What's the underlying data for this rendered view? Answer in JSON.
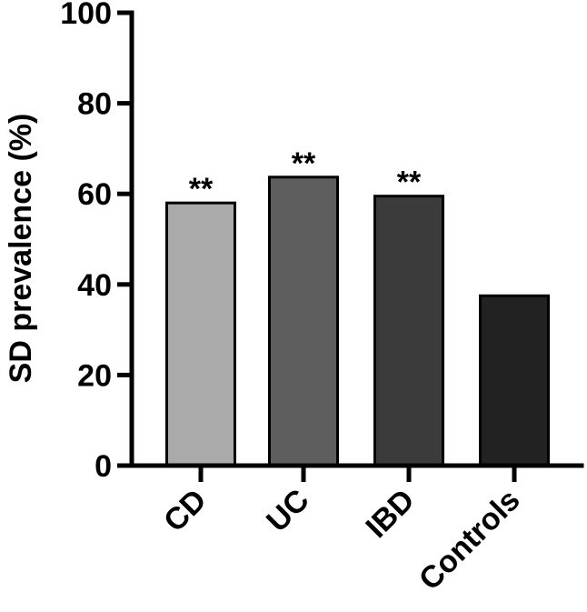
{
  "chart_data": {
    "type": "bar",
    "categories": [
      "CD",
      "UC",
      "IBD",
      "Controls"
    ],
    "values": [
      58,
      63.7,
      59.5,
      37.5
    ],
    "significance": [
      "**",
      "**",
      "**",
      ""
    ],
    "bar_colors": [
      "#aaaaaa",
      "#5e5e5e",
      "#3b3b3b",
      "#222222"
    ],
    "ylabel": "SD prevalence (%)",
    "xlabel": "",
    "title": "",
    "ylim": [
      0,
      100
    ],
    "yticks": [
      "0",
      "20",
      "40",
      "60",
      "80",
      "100"
    ],
    "ytick_values": [
      0,
      20,
      40,
      60,
      80,
      100
    ],
    "grid": false,
    "legend": "none"
  }
}
